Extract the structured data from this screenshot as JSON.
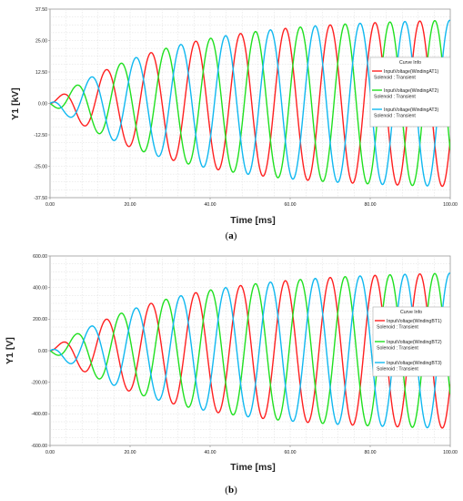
{
  "chart_data": [
    {
      "type": "line",
      "caption": "a",
      "xlabel": "Time [ms]",
      "ylabel": "Y1 [kV]",
      "xlim": [
        0,
        100
      ],
      "ylim": [
        -37.5,
        37.5
      ],
      "x_ticks": [
        "0.00",
        "20.00",
        "40.00",
        "60.00",
        "80.00",
        "100.00"
      ],
      "y_ticks": [
        "37.50",
        "25.00",
        "12.50",
        "0.00",
        "-12.50",
        "-25.00",
        "-37.50"
      ],
      "grid": true,
      "legend_title": "Curve Info",
      "legend_position": "right",
      "series": [
        {
          "name": "InputVoltage(WindingAT1)",
          "sub": "Solenoid : Transient",
          "color": "#ff2020",
          "amplitude": 34,
          "period_ms": 11.2,
          "phase_deg": 0,
          "rise_tau_ms": 28
        },
        {
          "name": "InputVoltage(WindingAT2)",
          "sub": "Solenoid : Transient",
          "color": "#20e020",
          "amplitude": 34,
          "period_ms": 11.2,
          "phase_deg": -120,
          "rise_tau_ms": 28
        },
        {
          "name": "InputVoltage(WindingAT3)",
          "sub": "Solenoid : Transient",
          "color": "#10b8f0",
          "amplitude": 34,
          "period_ms": 11.2,
          "phase_deg": 120,
          "rise_tau_ms": 28
        }
      ]
    },
    {
      "type": "line",
      "caption": "b",
      "xlabel": "Time [ms]",
      "ylabel": "Y1 [V]",
      "xlim": [
        0,
        100
      ],
      "ylim": [
        -600,
        600
      ],
      "x_ticks": [
        "0.00",
        "20.00",
        "40.00",
        "60.00",
        "80.00",
        "100.00"
      ],
      "y_ticks": [
        "600.00",
        "400.00",
        "200.00",
        "0.00",
        "-200.00",
        "-400.00",
        "-600.00"
      ],
      "grid": true,
      "legend_title": "Curve Info",
      "legend_position": "right",
      "series": [
        {
          "name": "InputVoltage(WindingBT1)",
          "sub": "Solenoid : Transient",
          "color": "#ff2020",
          "amplitude": 505,
          "period_ms": 11.2,
          "phase_deg": 0,
          "rise_tau_ms": 28
        },
        {
          "name": "InputVoltage(WindingBT2)",
          "sub": "Solenoid : Transient",
          "color": "#20e020",
          "amplitude": 505,
          "period_ms": 11.2,
          "phase_deg": -120,
          "rise_tau_ms": 28
        },
        {
          "name": "InputVoltage(WindingBT3)",
          "sub": "Solenoid : Transient",
          "color": "#10b8f0",
          "amplitude": 505,
          "period_ms": 11.2,
          "phase_deg": 120,
          "rise_tau_ms": 28
        }
      ]
    }
  ]
}
